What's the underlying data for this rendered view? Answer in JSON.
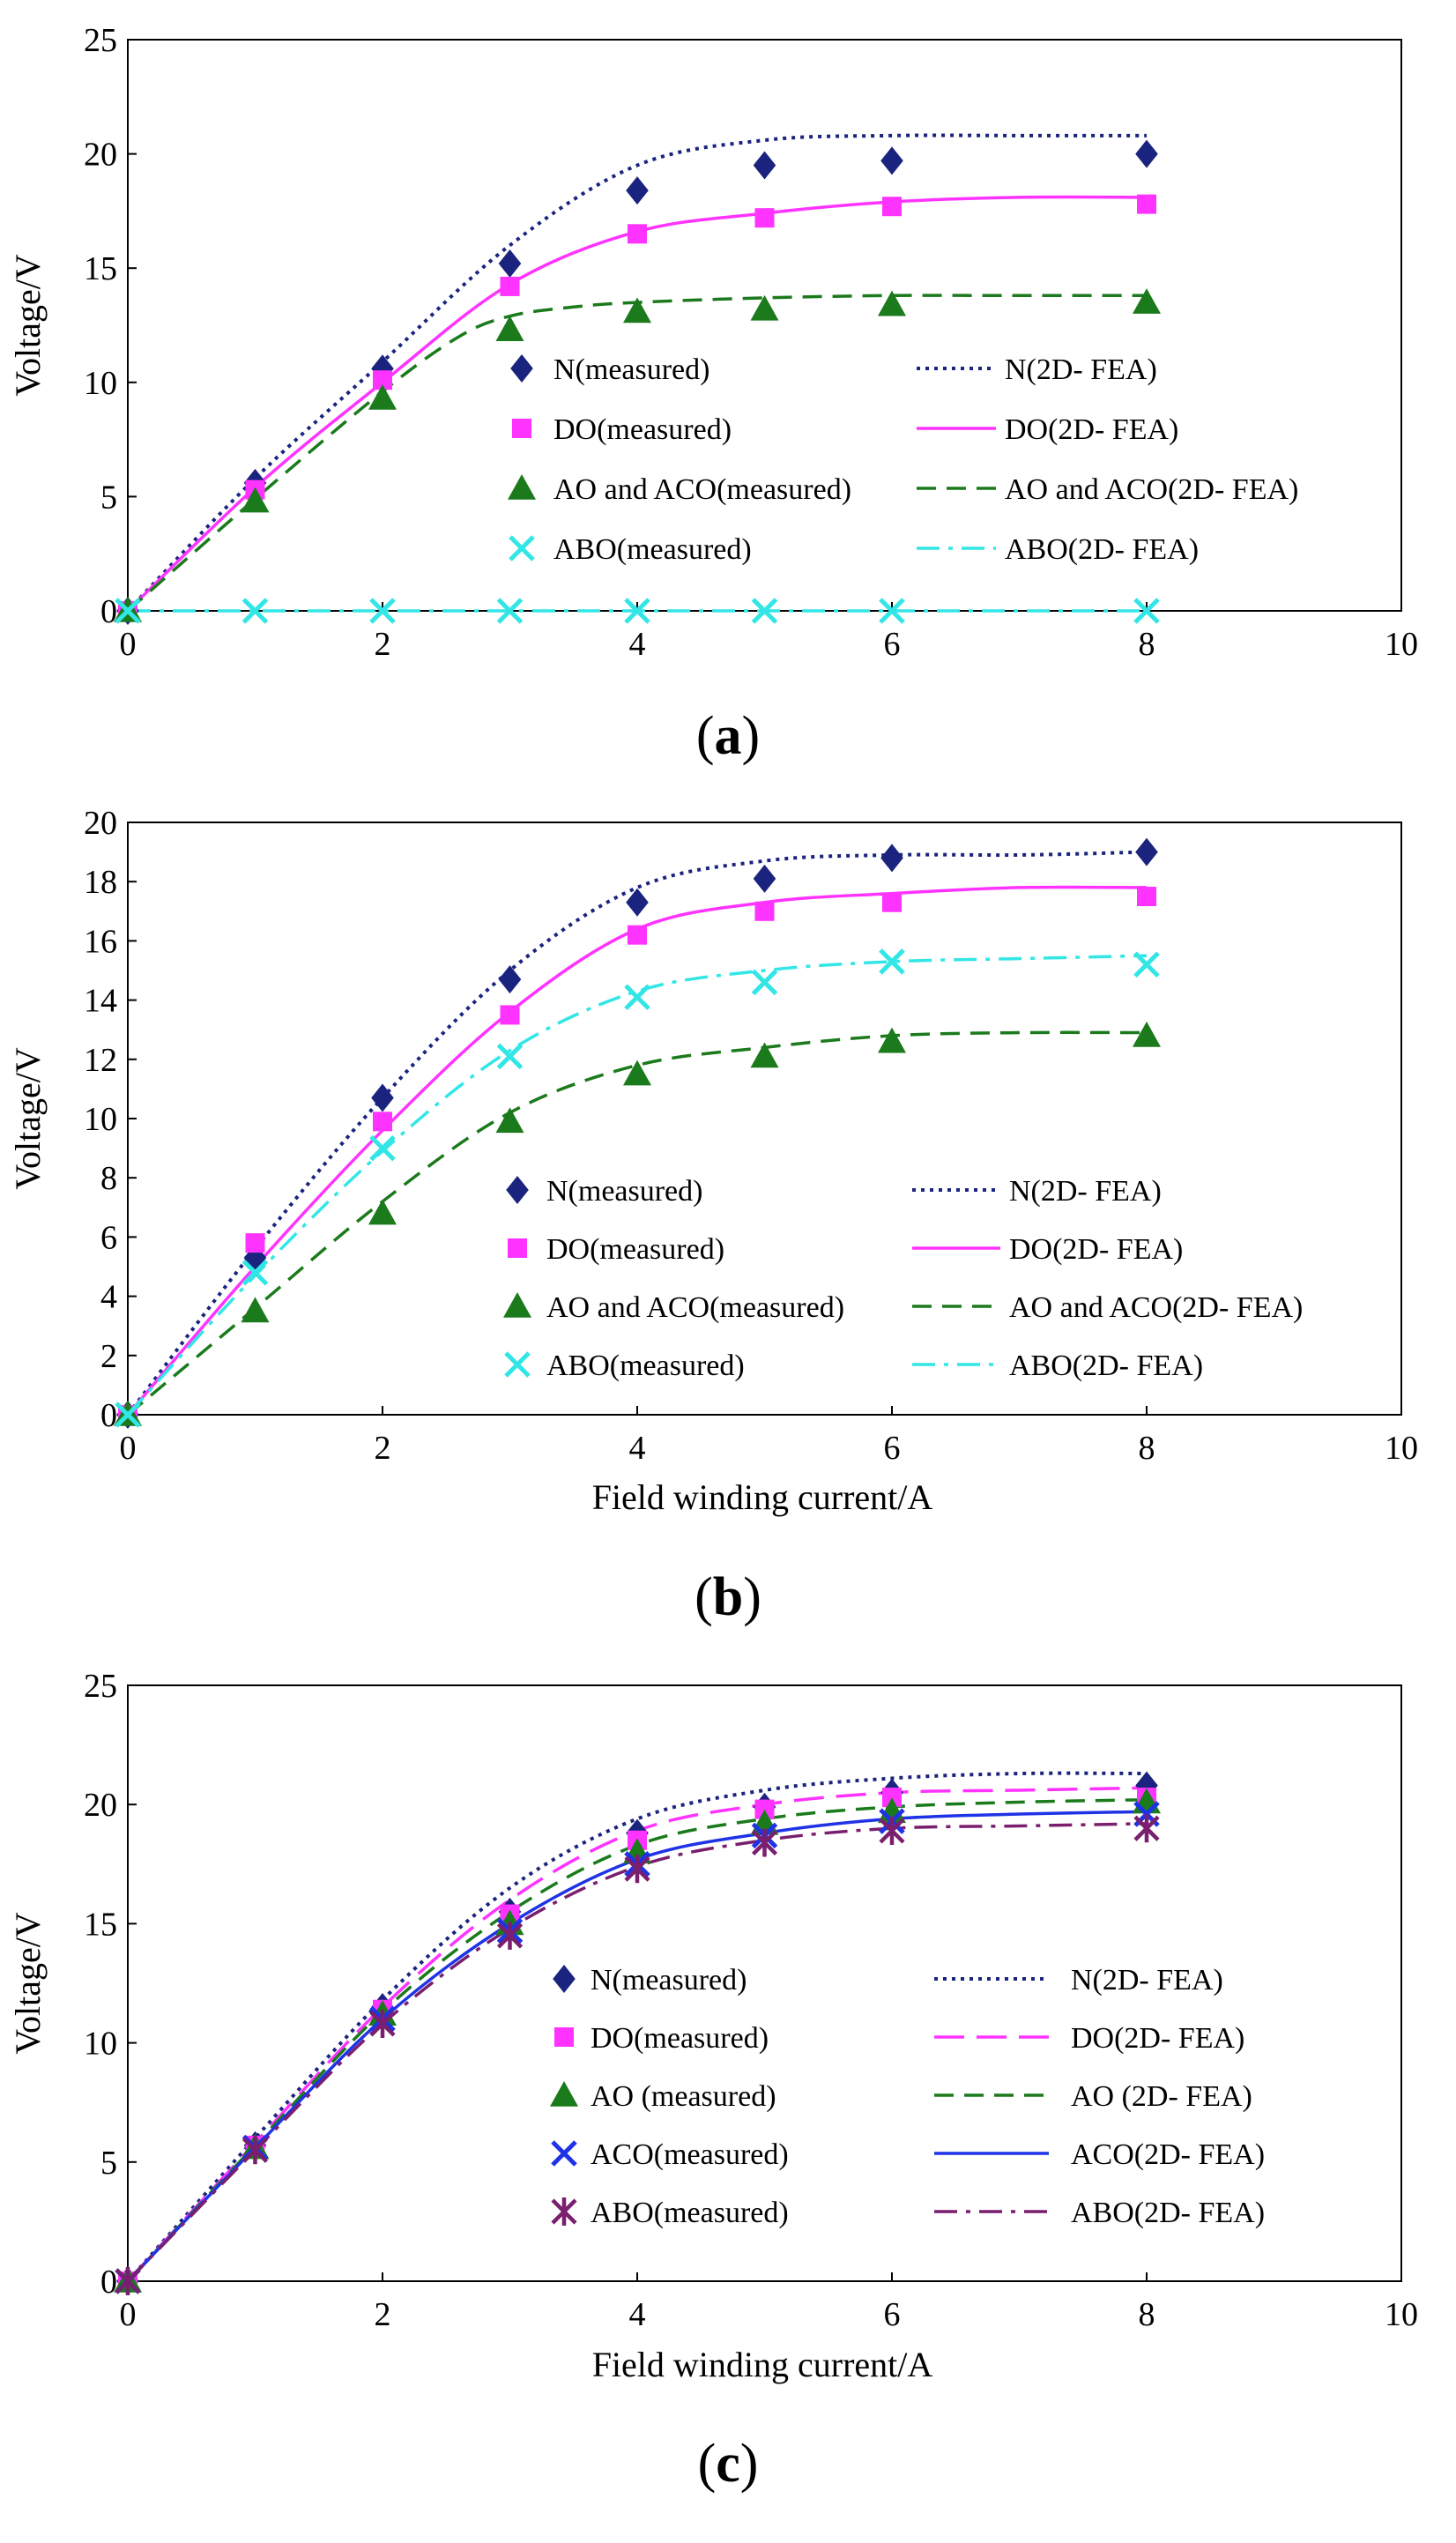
{
  "chart_data": [
    {
      "id": "a",
      "type": "line",
      "panel_label": "a",
      "ylabel": "Voltage/V",
      "xlabel": "",
      "xlim": [
        0,
        10
      ],
      "ylim": [
        0,
        25
      ],
      "xticks": [
        0,
        2,
        4,
        6,
        8,
        10
      ],
      "yticks": [
        0,
        5,
        10,
        15,
        20,
        25
      ],
      "grid": false,
      "legend_position": "center-right",
      "legend_columns": 2,
      "series": [
        {
          "name": "N(measured)",
          "kind": "marker",
          "marker": "diamond",
          "color": "#1a237e",
          "x": [
            0,
            1,
            2,
            3,
            4,
            5,
            6,
            8
          ],
          "y": [
            0,
            5.6,
            10.6,
            15.2,
            18.4,
            19.5,
            19.7,
            20.0
          ]
        },
        {
          "name": "N(2D- FEA)",
          "kind": "line",
          "dash": "dotted",
          "color": "#1a237e",
          "x": [
            0,
            1,
            2,
            3,
            4,
            5,
            6,
            7,
            8
          ],
          "y": [
            0,
            5.8,
            10.9,
            16.0,
            19.5,
            20.6,
            20.8,
            20.8,
            20.8
          ]
        },
        {
          "name": "DO(measured)",
          "kind": "marker",
          "marker": "square",
          "color": "#ff33ff",
          "x": [
            0,
            1,
            2,
            3,
            4,
            5,
            6,
            8
          ],
          "y": [
            0,
            5.3,
            10.1,
            14.2,
            16.5,
            17.2,
            17.7,
            17.8
          ]
        },
        {
          "name": "DO(2D- FEA)",
          "kind": "line",
          "dash": "solid",
          "color": "#ff33ff",
          "x": [
            0,
            1,
            2,
            3,
            4,
            5,
            6,
            7,
            8
          ],
          "y": [
            0,
            5.4,
            10.0,
            14.3,
            16.6,
            17.4,
            17.9,
            18.1,
            18.1
          ]
        },
        {
          "name": "AO and ACO(measured)",
          "kind": "marker",
          "marker": "triangle",
          "color": "#1b7a1b",
          "x": [
            0,
            1,
            2,
            3,
            4,
            5,
            6,
            8
          ],
          "y": [
            0,
            4.8,
            9.3,
            12.3,
            13.1,
            13.2,
            13.4,
            13.5
          ]
        },
        {
          "name": "AO and ACO(2D- FEA)",
          "kind": "line",
          "dash": "dashed",
          "color": "#1b7a1b",
          "x": [
            0,
            1,
            2,
            2.6,
            3,
            3.5,
            4,
            5,
            6,
            7,
            8
          ],
          "y": [
            0,
            4.9,
            9.6,
            12.0,
            12.9,
            13.3,
            13.5,
            13.7,
            13.8,
            13.8,
            13.8
          ]
        },
        {
          "name": "ABO(measured)",
          "kind": "marker",
          "marker": "x",
          "color": "#33e6e6",
          "x": [
            0,
            1,
            2,
            3,
            4,
            5,
            6,
            8
          ],
          "y": [
            0,
            0,
            0,
            0,
            0,
            0,
            0,
            0
          ]
        },
        {
          "name": "ABO(2D- FEA)",
          "kind": "line",
          "dash": "dashdot",
          "color": "#33e6e6",
          "x": [
            0,
            8
          ],
          "y": [
            0,
            0
          ]
        }
      ]
    },
    {
      "id": "b",
      "type": "line",
      "panel_label": "b",
      "ylabel": "Voltage/V",
      "xlabel": "Field winding current/A",
      "xlim": [
        0,
        10
      ],
      "ylim": [
        0,
        20
      ],
      "xticks": [
        0,
        2,
        4,
        6,
        8,
        10
      ],
      "yticks": [
        0,
        2,
        4,
        6,
        8,
        10,
        12,
        14,
        16,
        18,
        20
      ],
      "grid": false,
      "legend_position": "bottom-right",
      "legend_columns": 2,
      "series": [
        {
          "name": "N(measured)",
          "kind": "marker",
          "marker": "diamond",
          "color": "#1a237e",
          "x": [
            0,
            1,
            2,
            3,
            4,
            5,
            6,
            8
          ],
          "y": [
            0,
            5.3,
            10.7,
            14.7,
            17.3,
            18.1,
            18.8,
            19.0
          ]
        },
        {
          "name": "N(2D- FEA)",
          "kind": "line",
          "dash": "dotted",
          "color": "#1a237e",
          "x": [
            0,
            1,
            2,
            3,
            4,
            5,
            6,
            7,
            8
          ],
          "y": [
            0,
            5.6,
            10.7,
            15.0,
            17.8,
            18.7,
            18.9,
            18.9,
            19.0
          ]
        },
        {
          "name": "DO(measured)",
          "kind": "marker",
          "marker": "square",
          "color": "#ff33ff",
          "x": [
            0,
            1,
            2,
            3,
            4,
            5,
            6,
            8
          ],
          "y": [
            0,
            5.8,
            9.9,
            13.5,
            16.2,
            17.0,
            17.3,
            17.5
          ]
        },
        {
          "name": "DO(2D- FEA)",
          "kind": "line",
          "dash": "solid",
          "color": "#ff33ff",
          "x": [
            0,
            1,
            2,
            3,
            4,
            5,
            6,
            7,
            8
          ],
          "y": [
            0,
            5.0,
            9.6,
            13.6,
            16.4,
            17.3,
            17.6,
            17.8,
            17.8
          ]
        },
        {
          "name": "AO and ACO(measured)",
          "kind": "marker",
          "marker": "triangle",
          "color": "#1b7a1b",
          "x": [
            0,
            1,
            2,
            3,
            4,
            5,
            6,
            8
          ],
          "y": [
            0,
            3.5,
            6.8,
            9.9,
            11.5,
            12.1,
            12.6,
            12.8
          ]
        },
        {
          "name": "AO and ACO(2D- FEA)",
          "kind": "line",
          "dash": "dashed",
          "color": "#1b7a1b",
          "x": [
            0,
            1,
            2,
            3,
            4,
            5,
            6,
            7,
            8
          ],
          "y": [
            0,
            3.6,
            7.2,
            10.2,
            11.8,
            12.4,
            12.8,
            12.9,
            12.9
          ]
        },
        {
          "name": "ABO(measured)",
          "kind": "marker",
          "marker": "x",
          "color": "#33e6e6",
          "x": [
            0,
            1,
            2,
            3,
            4,
            5,
            6,
            8
          ],
          "y": [
            0,
            4.8,
            9.0,
            12.1,
            14.1,
            14.6,
            15.3,
            15.2
          ]
        },
        {
          "name": "ABO(2D- FEA)",
          "kind": "line",
          "dash": "dashdot",
          "color": "#33e6e6",
          "x": [
            0,
            1,
            2,
            3,
            4,
            5,
            6,
            7,
            8
          ],
          "y": [
            0,
            4.7,
            8.9,
            12.3,
            14.3,
            15.0,
            15.3,
            15.4,
            15.5
          ]
        }
      ]
    },
    {
      "id": "c",
      "type": "line",
      "panel_label": "c",
      "ylabel": "Voltage/V",
      "xlabel": "Field winding current/A",
      "xlim": [
        0,
        10
      ],
      "ylim": [
        0,
        25
      ],
      "xticks": [
        0,
        2,
        4,
        6,
        8,
        10
      ],
      "yticks": [
        0,
        5,
        10,
        15,
        20,
        25
      ],
      "grid": false,
      "legend_position": "bottom-right",
      "legend_columns": 2,
      "series": [
        {
          "name": "N(measured)",
          "kind": "marker",
          "marker": "diamond",
          "color": "#1a237e",
          "x": [
            0,
            1,
            2,
            3,
            4,
            5,
            6,
            8
          ],
          "y": [
            0,
            5.7,
            11.5,
            15.5,
            18.8,
            19.9,
            20.5,
            20.8
          ]
        },
        {
          "name": "N(2D- FEA)",
          "kind": "line",
          "dash": "dotted",
          "color": "#1a237e",
          "x": [
            0,
            1,
            2,
            3,
            4,
            5,
            6,
            7,
            8
          ],
          "y": [
            0,
            6.0,
            11.8,
            16.5,
            19.4,
            20.6,
            21.1,
            21.3,
            21.3
          ]
        },
        {
          "name": "DO(measured)",
          "kind": "marker",
          "marker": "square",
          "color": "#ff33ff",
          "x": [
            0,
            1,
            2,
            3,
            4,
            5,
            6,
            8
          ],
          "y": [
            0,
            5.7,
            11.4,
            15.4,
            18.5,
            19.8,
            20.3,
            20.3
          ]
        },
        {
          "name": "DO(2D- FEA)",
          "kind": "line",
          "dash": "longdash",
          "color": "#ff33ff",
          "x": [
            0,
            1,
            2,
            3,
            4,
            5,
            6,
            7,
            8
          ],
          "y": [
            0,
            5.8,
            11.5,
            16.0,
            18.9,
            20.0,
            20.5,
            20.6,
            20.7
          ]
        },
        {
          "name": "AO (measured)",
          "kind": "marker",
          "marker": "triangle",
          "color": "#1b7a1b",
          "x": [
            0,
            1,
            2,
            3,
            4,
            5,
            6,
            8
          ],
          "y": [
            0,
            5.6,
            11.2,
            15.0,
            18.0,
            19.2,
            19.7,
            20.1
          ]
        },
        {
          "name": "AO (2D- FEA)",
          "kind": "line",
          "dash": "dashed",
          "color": "#1b7a1b",
          "x": [
            0,
            1,
            2,
            3,
            4,
            5,
            6,
            7,
            8
          ],
          "y": [
            0,
            5.7,
            11.3,
            15.5,
            18.3,
            19.4,
            19.9,
            20.1,
            20.2
          ]
        },
        {
          "name": "ACO(measured)",
          "kind": "marker",
          "marker": "x",
          "color": "#1f33e6",
          "x": [
            0,
            1,
            2,
            3,
            4,
            5,
            6,
            8
          ],
          "y": [
            0,
            5.6,
            11.0,
            14.7,
            17.5,
            18.7,
            19.3,
            19.6
          ]
        },
        {
          "name": "ACO(2D- FEA)",
          "kind": "line",
          "dash": "solid",
          "color": "#1f33e6",
          "x": [
            0,
            1,
            2,
            3,
            4,
            5,
            6,
            7,
            8
          ],
          "y": [
            0,
            5.6,
            11.0,
            15.0,
            17.7,
            18.8,
            19.4,
            19.6,
            19.7
          ]
        },
        {
          "name": "ABO(measured)",
          "kind": "marker",
          "marker": "asterisk",
          "color": "#7a1f6e",
          "x": [
            0,
            1,
            2,
            3,
            4,
            5,
            6,
            8
          ],
          "y": [
            0,
            5.5,
            10.8,
            14.5,
            17.3,
            18.4,
            18.9,
            19.0
          ]
        },
        {
          "name": "ABO(2D- FEA)",
          "kind": "line",
          "dash": "dashdot",
          "color": "#7a1f6e",
          "x": [
            0,
            1,
            2,
            3,
            4,
            5,
            6,
            7,
            8
          ],
          "y": [
            0,
            5.5,
            10.8,
            14.8,
            17.4,
            18.5,
            19.0,
            19.1,
            19.2
          ]
        }
      ]
    }
  ]
}
